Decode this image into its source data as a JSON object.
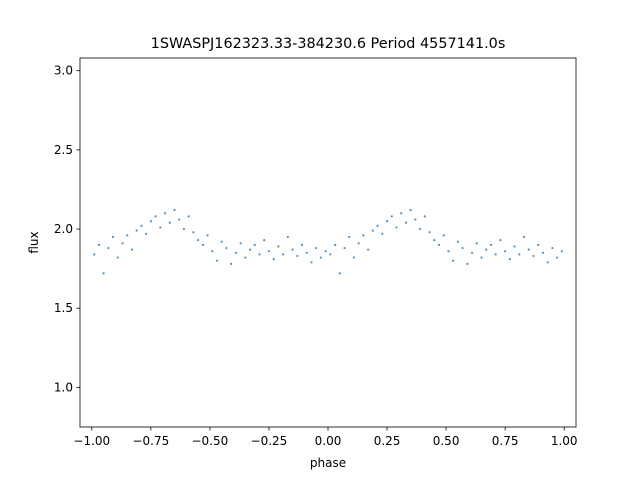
{
  "chart_data": {
    "type": "scatter",
    "title": "1SWASPJ162323.33-384230.6 Period 4557141.0s",
    "xlabel": "phase",
    "ylabel": "flux",
    "xlim": [
      -1.05,
      1.05
    ],
    "ylim": [
      0.75,
      3.08
    ],
    "grid": false,
    "legend": "none",
    "marker_color": "#1f77b4",
    "x_ticks": [
      -1.0,
      -0.75,
      -0.5,
      -0.25,
      0.0,
      0.25,
      0.5,
      0.75,
      1.0
    ],
    "x_tick_labels": [
      "−1.00",
      "−0.75",
      "−0.50",
      "−0.25",
      "0.00",
      "0.25",
      "0.50",
      "0.75",
      "1.00"
    ],
    "y_ticks": [
      1.0,
      1.5,
      2.0,
      2.5,
      3.0
    ],
    "y_tick_labels": [
      "1.0",
      "1.5",
      "2.0",
      "2.5",
      "3.0"
    ],
    "series": [
      {
        "x": [
          -0.99,
          -0.97,
          -0.95,
          -0.93,
          -0.91,
          -0.89,
          -0.87,
          -0.85,
          -0.83,
          -0.81,
          -0.79,
          -0.77,
          -0.75,
          -0.73,
          -0.71,
          -0.69,
          -0.67,
          -0.65,
          -0.63,
          -0.61,
          -0.59,
          -0.57,
          -0.55,
          -0.53,
          -0.51,
          -0.49,
          -0.47,
          -0.45,
          -0.43,
          -0.41,
          -0.39,
          -0.37,
          -0.35,
          -0.33,
          -0.31,
          -0.29,
          -0.27,
          -0.25,
          -0.23,
          -0.21,
          -0.19,
          -0.17,
          -0.15,
          -0.13,
          -0.11,
          -0.09,
          -0.07,
          -0.05,
          -0.03,
          -0.01,
          0.01,
          0.03,
          0.05,
          0.07,
          0.09,
          0.11,
          0.13,
          0.15,
          0.17,
          0.19,
          0.21,
          0.23,
          0.25,
          0.27,
          0.29,
          0.31,
          0.33,
          0.35,
          0.37,
          0.39,
          0.41,
          0.43,
          0.45,
          0.47,
          0.49,
          0.51,
          0.53,
          0.55,
          0.57,
          0.59,
          0.61,
          0.63,
          0.65,
          0.67,
          0.69,
          0.71,
          0.73,
          0.75,
          0.77,
          0.79,
          0.81,
          0.83,
          0.85,
          0.87,
          0.89,
          0.91,
          0.93,
          0.95,
          0.97,
          0.99
        ],
        "y": [
          1.84,
          1.9,
          1.72,
          1.88,
          1.95,
          1.82,
          1.91,
          1.96,
          1.87,
          1.99,
          2.02,
          1.97,
          2.05,
          2.08,
          2.01,
          2.1,
          2.04,
          2.12,
          2.06,
          2.0,
          2.08,
          1.98,
          1.93,
          1.9,
          1.96,
          1.86,
          1.8,
          1.92,
          1.88,
          1.78,
          1.85,
          1.91,
          1.82,
          1.87,
          1.9,
          1.84,
          1.93,
          1.86,
          1.81,
          1.89,
          1.84,
          1.95,
          1.87,
          1.83,
          1.9,
          1.85,
          1.79,
          1.88,
          1.82,
          1.86,
          1.84,
          1.9,
          1.72,
          1.88,
          1.95,
          1.82,
          1.91,
          1.96,
          1.87,
          1.99,
          2.02,
          1.97,
          2.05,
          2.08,
          2.01,
          2.1,
          2.04,
          2.12,
          2.06,
          2.0,
          2.08,
          1.98,
          1.93,
          1.9,
          1.96,
          1.86,
          1.8,
          1.92,
          1.88,
          1.78,
          1.85,
          1.91,
          1.82,
          1.87,
          1.9,
          1.84,
          1.93,
          1.86,
          1.81,
          1.89,
          1.84,
          1.95,
          1.87,
          1.83,
          1.9,
          1.85,
          1.79,
          1.88,
          1.82,
          1.86
        ]
      }
    ]
  }
}
